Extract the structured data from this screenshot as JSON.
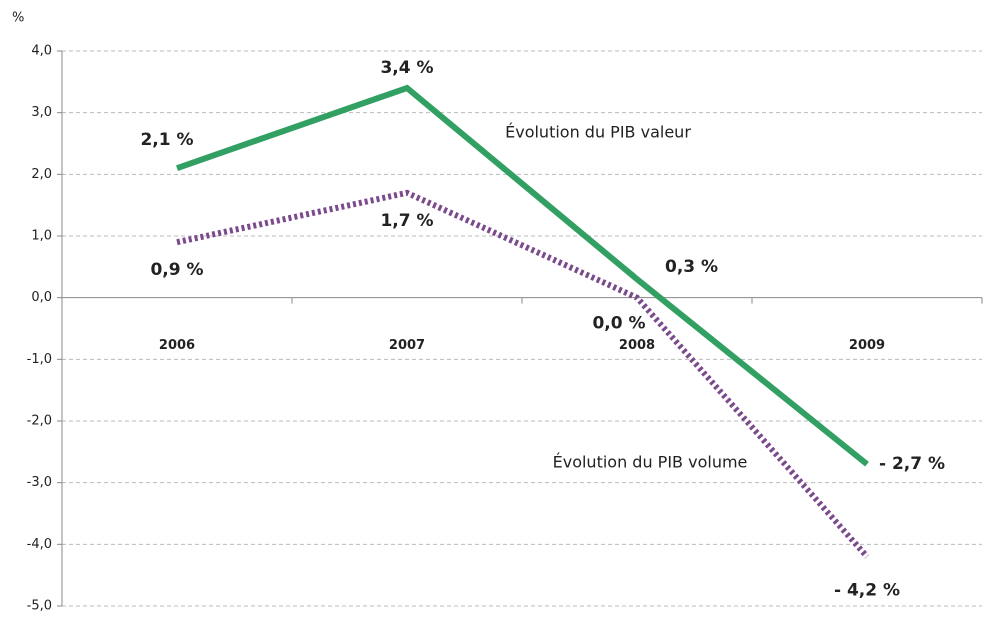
{
  "chart_data": {
    "type": "line",
    "y_label": "%",
    "categories": [
      "2006",
      "2007",
      "2008",
      "2009"
    ],
    "series": [
      {
        "name": "Évolution du PIB valeur",
        "color": "#31a062",
        "values": [
          2.1,
          3.4,
          0.3,
          -2.7
        ],
        "value_labels": [
          "2,1 %",
          "3,4 %",
          "0,3 %",
          "- 2,7 %"
        ]
      },
      {
        "name": "Évolution du PIB volume",
        "color": "#7b4a8c",
        "values": [
          0.9,
          1.7,
          0.0,
          -4.2
        ],
        "value_labels": [
          "0,9 %",
          "1,7 %",
          "0,0 %",
          "- 4,2 %"
        ]
      }
    ],
    "ylim": [
      -5,
      4
    ],
    "yticks": [
      {
        "value": 4,
        "label": "4,0"
      },
      {
        "value": 3,
        "label": "3,0"
      },
      {
        "value": 2,
        "label": "2,0"
      },
      {
        "value": 1,
        "label": "1,0"
      },
      {
        "value": 0,
        "label": "0,0"
      },
      {
        "value": -1,
        "label": "-1,0"
      },
      {
        "value": -2,
        "label": "-2,0"
      },
      {
        "value": -3,
        "label": "-3,0"
      },
      {
        "value": -4,
        "label": "-4,0"
      },
      {
        "value": -5,
        "label": "-5,0"
      }
    ],
    "grid": true
  }
}
